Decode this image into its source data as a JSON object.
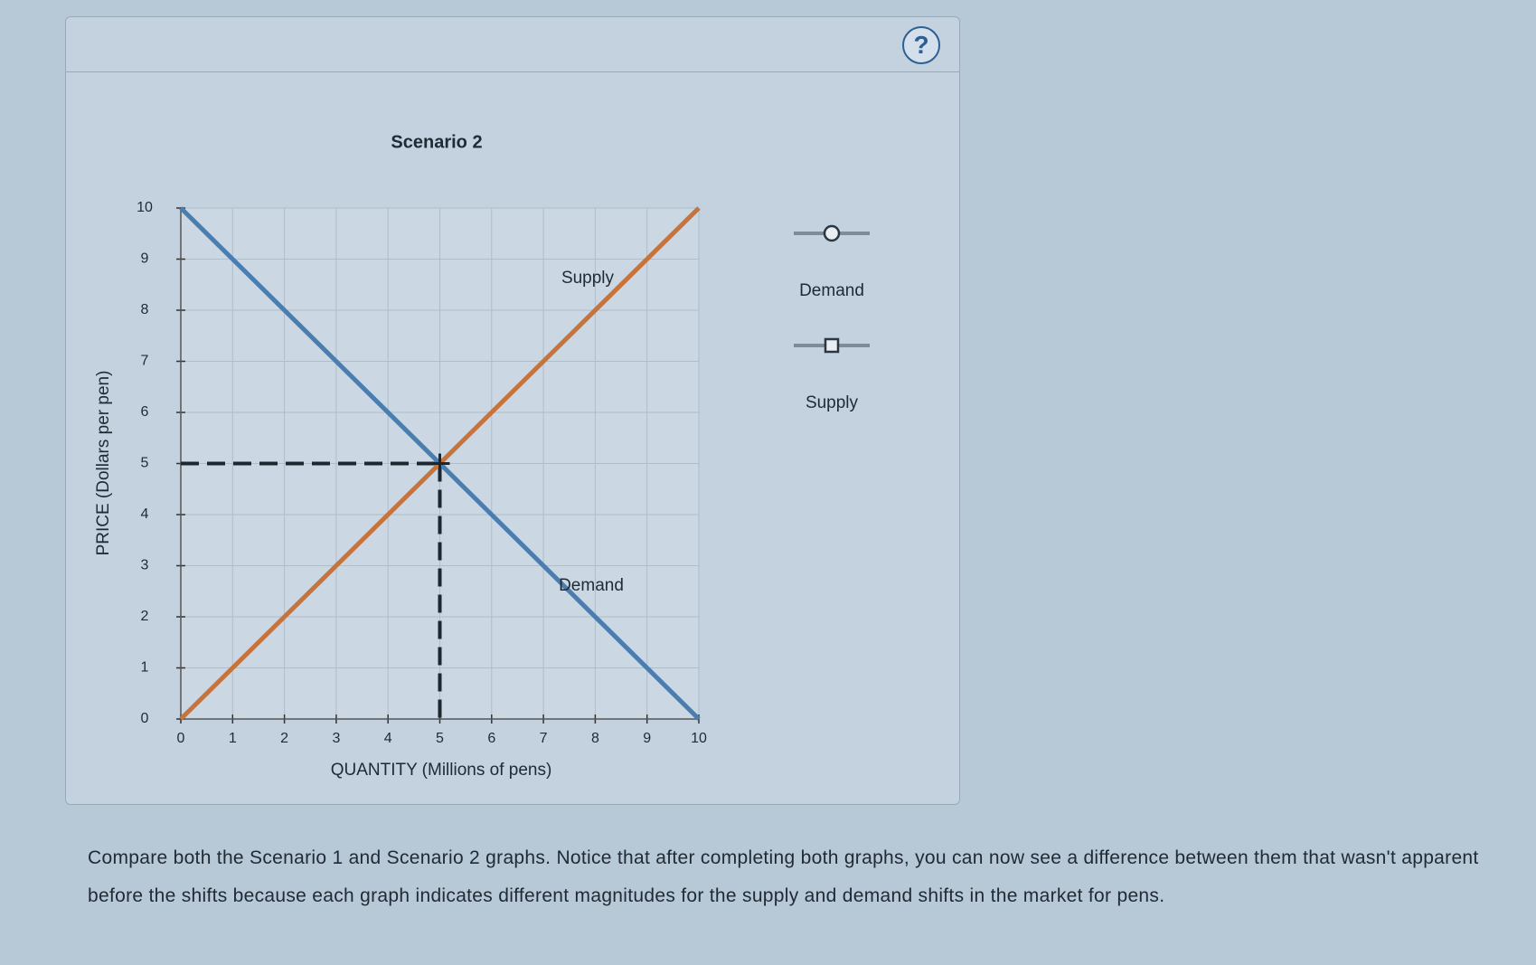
{
  "help_label": "?",
  "chart_data": {
    "type": "line",
    "title": "Scenario 2",
    "x_label": "QUANTITY (Millions of pens)",
    "y_label": "PRICE (Dollars per pen)",
    "x": [
      0,
      10
    ],
    "series": [
      {
        "name": "Demand",
        "color": "#4a7db0",
        "marker": "circle",
        "values": [
          10,
          0
        ]
      },
      {
        "name": "Supply",
        "color": "#c7743c",
        "marker": "square",
        "values": [
          0,
          10
        ]
      }
    ],
    "annotations": [
      "Supply",
      "Demand"
    ],
    "equilibrium": {
      "x": 5,
      "y": 5
    },
    "xlim": [
      0,
      10
    ],
    "ylim": [
      0,
      10
    ],
    "xticks": [
      0,
      1,
      2,
      3,
      4,
      5,
      6,
      7,
      8,
      9,
      10
    ],
    "yticks": [
      0,
      1,
      2,
      3,
      4,
      5,
      6,
      7,
      8,
      9,
      10
    ],
    "grid": true
  },
  "instructions": "Compare both the Scenario 1 and Scenario 2 graphs. Notice that after completing both graphs, you can now see a difference between them that wasn't apparent before the shifts because each graph indicates different magnitudes for the supply and demand shifts in the market for pens."
}
